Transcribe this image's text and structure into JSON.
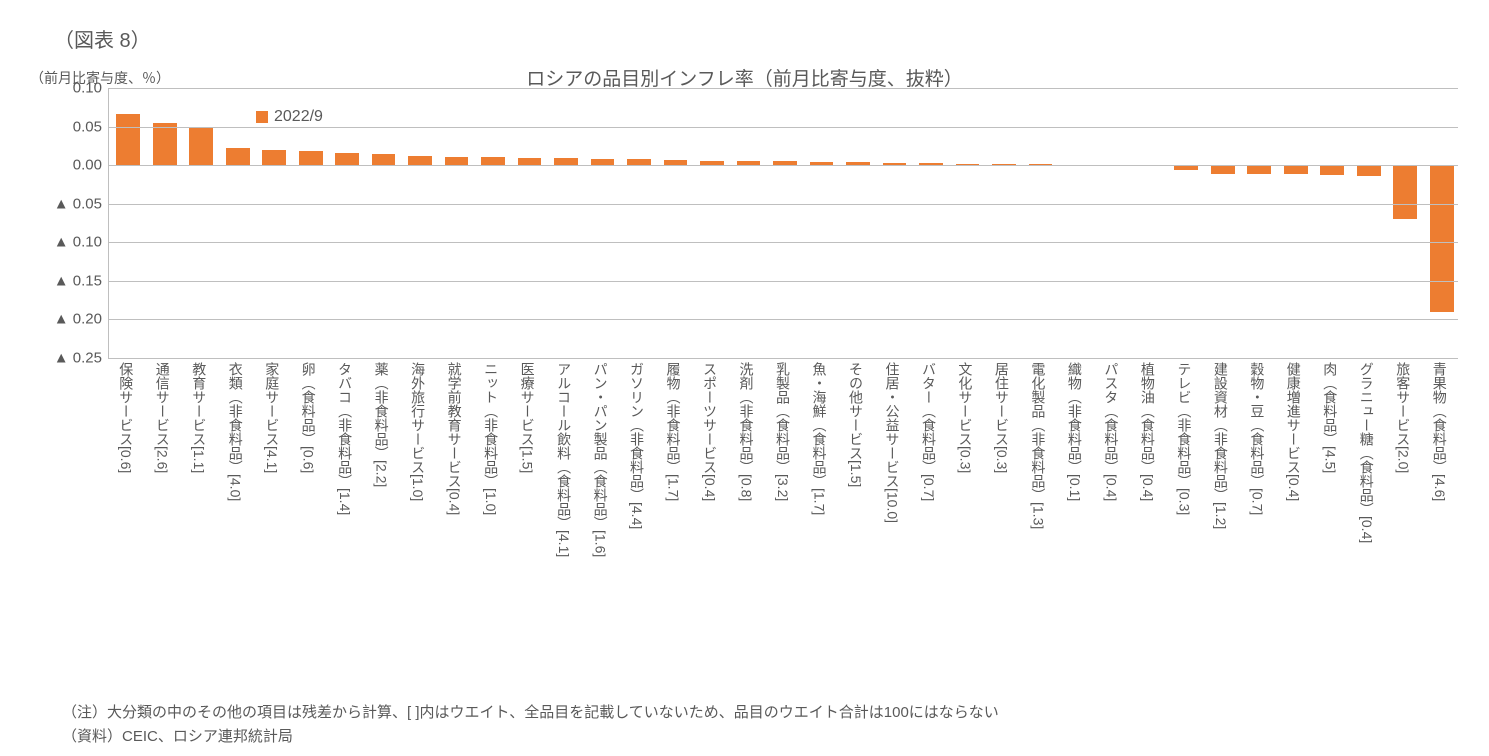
{
  "figure_number": "（図表 8）",
  "y_axis_label": "（前月比寄与度、％）",
  "title": "ロシアの品目別インフレ率（前月比寄与度、抜粋）",
  "legend_label": "2022/9",
  "footnote1": "（注）大分類の中のその他の項目は残差から計算、[ ]内はウエイト、全品目を記載していないため、品目のウエイト合計は100にはならない",
  "footnote2": "（資料）CEIC、ロシア連邦統計局",
  "chart": {
    "type": "bar",
    "bar_color": "#ed7d31",
    "background_color": "#ffffff",
    "axis_color": "#bfbfbf",
    "text_color": "#595959",
    "ylim": [
      -0.25,
      0.1
    ],
    "ytick_step": 0.05,
    "yticks": [
      {
        "v": 0.1,
        "label": "0.10"
      },
      {
        "v": 0.05,
        "label": "0.05"
      },
      {
        "v": 0.0,
        "label": "0.00"
      },
      {
        "v": -0.05,
        "label": "▲ 0.05"
      },
      {
        "v": -0.1,
        "label": "▲ 0.10"
      },
      {
        "v": -0.15,
        "label": "▲ 0.15"
      },
      {
        "v": -0.2,
        "label": "▲ 0.20"
      },
      {
        "v": -0.25,
        "label": "▲ 0.25"
      }
    ],
    "bar_width": 0.65,
    "categories": [
      "保険サービス[0.6]",
      "通信サービス[2.6]",
      "教育サービス[1.1]",
      "衣類（非食料品）[4.0]",
      "家庭サービス[4.1]",
      "卵（食料品）[0.6]",
      "タバコ（非食料品）[1.4]",
      "薬（非食料品）[2.2]",
      "海外旅行サービス[1.0]",
      "就学前教育サービス[0.4]",
      "ニット（非食料品）[1.0]",
      "医療サービス[1.5]",
      "アルコール飲料（食料品）[4.1]",
      "パン・パン製品（食料品）[1.6]",
      "ガソリン（非食料品）[4.4]",
      "履物（非食料品）[1.7]",
      "スポーツサービス[0.4]",
      "洗剤（非食料品）[0.8]",
      "乳製品（食料品）[3.2]",
      "魚・海鮮（食料品）[1.7]",
      "その他サービス[1.5]",
      "住居・公益サービス[10.0]",
      "バター（食料品）[0.7]",
      "文化サービス[0.3]",
      "居住サービス[0.3]",
      "電化製品（非食料品）[1.3]",
      "織物（非食料品）[0.1]",
      "パスタ（食料品）[0.4]",
      "植物油（食料品）[0.4]",
      "テレビ（非食料品）[0.3]",
      "建設資材（非食料品）[1.2]",
      "穀物・豆（食料品）[0.7]",
      "健康増進サービス[0.4]",
      "肉（食料品）[4.5]",
      "グラニュー糖（食料品）[0.4]",
      "旅客サービス[2.0]",
      "青果物（食料品）[4.6]"
    ],
    "values": [
      0.066,
      0.054,
      0.048,
      0.022,
      0.02,
      0.018,
      0.016,
      0.015,
      0.012,
      0.01,
      0.01,
      0.009,
      0.009,
      0.008,
      0.008,
      0.007,
      0.006,
      0.005,
      0.005,
      0.004,
      0.004,
      0.003,
      0.003,
      0.002,
      0.002,
      0.001,
      0.0,
      0.0,
      -0.001,
      -0.006,
      -0.011,
      -0.011,
      -0.012,
      -0.013,
      -0.014,
      -0.07,
      -0.19
    ]
  }
}
